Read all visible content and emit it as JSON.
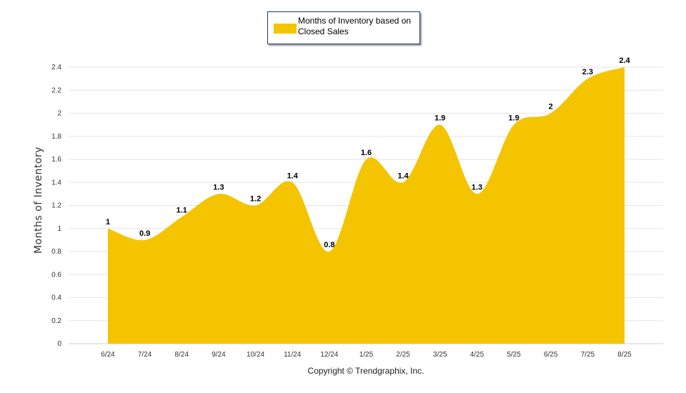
{
  "legend": {
    "label": "Months of Inventory based on Closed Sales",
    "color": "#f5c400"
  },
  "copyright": "Copyright © Trendgraphix, Inc.",
  "chart_data": {
    "type": "area",
    "ylabel": "Months of Inventory",
    "xlabel": "",
    "categories": [
      "6/24",
      "7/24",
      "8/24",
      "9/24",
      "10/24",
      "11/24",
      "12/24",
      "1/25",
      "2/25",
      "3/25",
      "4/25",
      "5/25",
      "6/25",
      "7/25",
      "8/25"
    ],
    "series": [
      {
        "name": "Months of Inventory based on Closed Sales",
        "values": [
          1,
          0.9,
          1.1,
          1.3,
          1.2,
          1.4,
          0.8,
          1.6,
          1.4,
          1.9,
          1.3,
          1.9,
          2,
          2.3,
          2.4
        ],
        "labels": [
          "1",
          "0.9",
          "1.1",
          "1.3",
          "1.2",
          "1.4",
          "0.8",
          "1.6",
          "1.4",
          "1.9",
          "1.3",
          "1.9",
          "2",
          "2.3",
          "2.4"
        ],
        "color": "#f5c400"
      }
    ],
    "ylim": [
      0,
      2.4
    ],
    "yticks": [
      "0",
      "0.2",
      "0.4",
      "0.6",
      "0.8",
      "1",
      "1.2",
      "1.4",
      "1.6",
      "1.8",
      "2",
      "2.2",
      "2.4"
    ],
    "grid": true,
    "legend_position": "top-center"
  }
}
